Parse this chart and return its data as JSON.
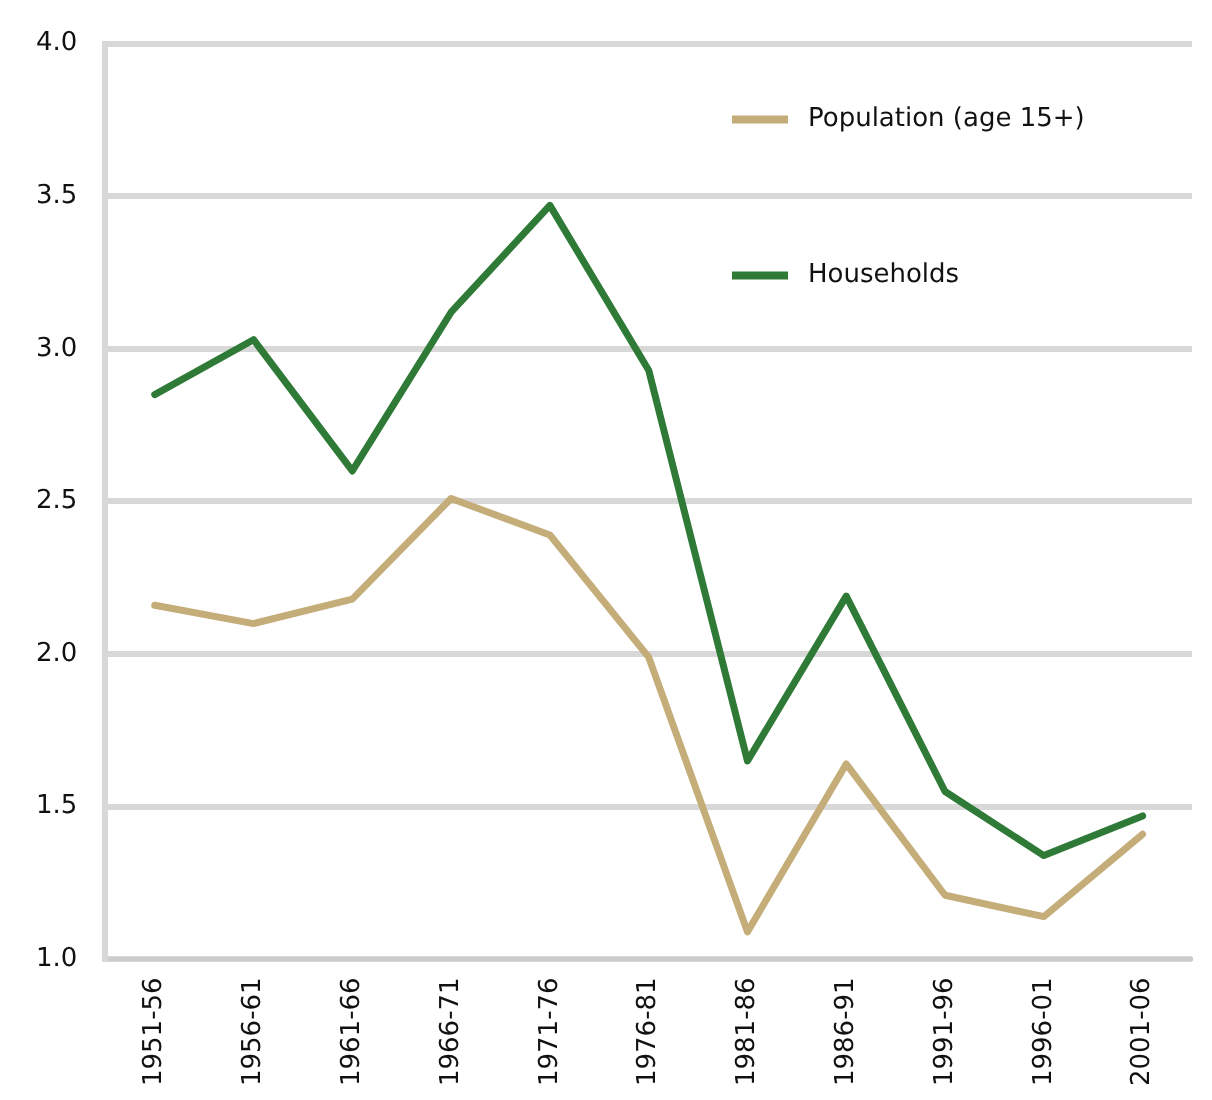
{
  "chart_data": {
    "type": "line",
    "categories": [
      "1951-56",
      "1956-61",
      "1961-66",
      "1966-71",
      "1971-76",
      "1976-81",
      "1981-86",
      "1986-91",
      "1991-96",
      "1996-01",
      "2001-06"
    ],
    "series": [
      {
        "name": "Population (age 15+)",
        "color": "#c4ad78",
        "values": [
          2.16,
          2.1,
          2.18,
          2.51,
          2.39,
          1.99,
          1.09,
          1.64,
          1.21,
          1.14,
          1.41
        ]
      },
      {
        "name": "Households",
        "color": "#2e7a36",
        "values": [
          2.85,
          3.03,
          2.6,
          3.12,
          3.47,
          2.93,
          1.65,
          2.19,
          1.55,
          1.34,
          1.47
        ]
      }
    ],
    "ylim": [
      1.0,
      4.0
    ],
    "yticks": [
      {
        "value": 1,
        "label": "1.0"
      },
      1.5,
      {
        "value": 2,
        "label": "2.0"
      },
      2.5,
      {
        "value": 3,
        "label": "3.0"
      },
      3.5,
      {
        "value": 4,
        "label": "4.0"
      }
    ],
    "grid": "y",
    "legend": "top right",
    "marker": "none",
    "line_style": "solid"
  }
}
